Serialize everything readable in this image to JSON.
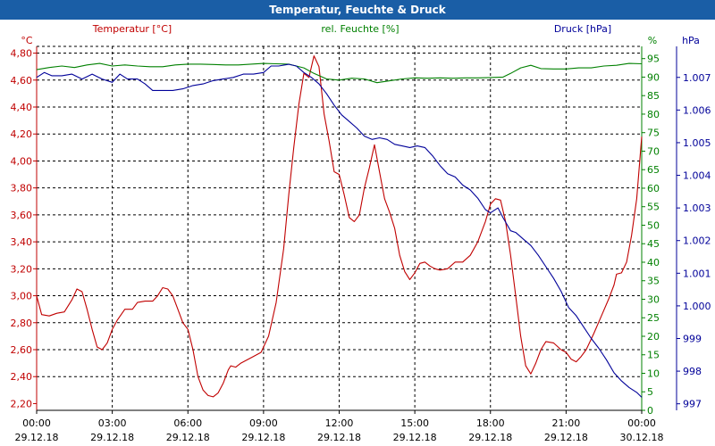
{
  "window": {
    "title": "Temperatur, Feuchte & Druck"
  },
  "chart_data": {
    "type": "line",
    "title": "Temperatur, Feuchte & Druck",
    "colors": {
      "temperature": "#c00000",
      "humidity": "#008000",
      "pressure": "#000099"
    },
    "axes": {
      "temperature": {
        "label": "Temperatur [°C]",
        "unit": "°C",
        "ylim": [
          2.15,
          4.85
        ],
        "ticks": [
          "2,20",
          "2,40",
          "2,60",
          "2,80",
          "3,00",
          "3,20",
          "3,40",
          "3,60",
          "3,80",
          "4,00",
          "4,20",
          "4,40",
          "4,60",
          "4,80"
        ]
      },
      "humidity": {
        "label": "rel. Feuchte [%]",
        "unit": "%",
        "ylim": [
          0,
          98.3
        ],
        "ticks": [
          "0",
          "5",
          "10",
          "15",
          "20",
          "25",
          "30",
          "35",
          "40",
          "45",
          "50",
          "55",
          "60",
          "65",
          "70",
          "75",
          "80",
          "85",
          "90",
          "95"
        ]
      },
      "pressure": {
        "label": "Druck [hPa]",
        "unit": "hPa",
        "ylim": [
          996.8,
          1007.95
        ],
        "ticks": [
          "997",
          "998",
          "999",
          "1.000",
          "1.001",
          "1.002",
          "1.003",
          "1.004",
          "1.005",
          "1.006",
          "1.007"
        ]
      }
    },
    "x": {
      "range_hours": [
        0,
        24
      ],
      "ticks": [
        {
          "time": "00:00",
          "date": "29.12.18"
        },
        {
          "time": "03:00",
          "date": "29.12.18"
        },
        {
          "time": "06:00",
          "date": "29.12.18"
        },
        {
          "time": "09:00",
          "date": "29.12.18"
        },
        {
          "time": "12:00",
          "date": "29.12.18"
        },
        {
          "time": "15:00",
          "date": "29.12.18"
        },
        {
          "time": "18:00",
          "date": "29.12.18"
        },
        {
          "time": "21:00",
          "date": "29.12.18"
        },
        {
          "time": "00:00",
          "date": "30.12.18"
        }
      ]
    },
    "series": [
      {
        "name": "Temperatur",
        "axis": "temperature",
        "points": [
          [
            0,
            3.0
          ],
          [
            0.2,
            2.86
          ],
          [
            0.5,
            2.85
          ],
          [
            0.8,
            2.87
          ],
          [
            1.1,
            2.88
          ],
          [
            1.4,
            2.97
          ],
          [
            1.6,
            3.05
          ],
          [
            1.8,
            3.03
          ],
          [
            2.0,
            2.9
          ],
          [
            2.2,
            2.75
          ],
          [
            2.4,
            2.62
          ],
          [
            2.6,
            2.6
          ],
          [
            2.8,
            2.65
          ],
          [
            3.0,
            2.75
          ],
          [
            3.2,
            2.82
          ],
          [
            3.5,
            2.9
          ],
          [
            3.8,
            2.9
          ],
          [
            4.0,
            2.95
          ],
          [
            4.3,
            2.96
          ],
          [
            4.6,
            2.96
          ],
          [
            4.8,
            3.0
          ],
          [
            5.0,
            3.06
          ],
          [
            5.2,
            3.05
          ],
          [
            5.4,
            3.0
          ],
          [
            5.6,
            2.9
          ],
          [
            5.8,
            2.8
          ],
          [
            6.0,
            2.75
          ],
          [
            6.2,
            2.6
          ],
          [
            6.4,
            2.4
          ],
          [
            6.6,
            2.3
          ],
          [
            6.8,
            2.26
          ],
          [
            7.0,
            2.25
          ],
          [
            7.2,
            2.28
          ],
          [
            7.4,
            2.35
          ],
          [
            7.6,
            2.45
          ],
          [
            7.7,
            2.48
          ],
          [
            7.9,
            2.47
          ],
          [
            8.1,
            2.5
          ],
          [
            8.3,
            2.52
          ],
          [
            8.6,
            2.55
          ],
          [
            8.9,
            2.58
          ],
          [
            9.2,
            2.7
          ],
          [
            9.5,
            2.95
          ],
          [
            9.8,
            3.35
          ],
          [
            10.0,
            3.75
          ],
          [
            10.2,
            4.1
          ],
          [
            10.4,
            4.42
          ],
          [
            10.6,
            4.65
          ],
          [
            10.8,
            4.62
          ],
          [
            11.0,
            4.78
          ],
          [
            11.2,
            4.7
          ],
          [
            11.4,
            4.35
          ],
          [
            11.6,
            4.15
          ],
          [
            11.8,
            3.92
          ],
          [
            12.0,
            3.9
          ],
          [
            12.2,
            3.75
          ],
          [
            12.4,
            3.58
          ],
          [
            12.6,
            3.55
          ],
          [
            12.8,
            3.6
          ],
          [
            13.0,
            3.8
          ],
          [
            13.2,
            3.95
          ],
          [
            13.4,
            4.12
          ],
          [
            13.6,
            3.92
          ],
          [
            13.8,
            3.72
          ],
          [
            14.0,
            3.62
          ],
          [
            14.2,
            3.5
          ],
          [
            14.4,
            3.3
          ],
          [
            14.6,
            3.18
          ],
          [
            14.8,
            3.12
          ],
          [
            15.0,
            3.17
          ],
          [
            15.2,
            3.24
          ],
          [
            15.4,
            3.25
          ],
          [
            15.6,
            3.22
          ],
          [
            15.8,
            3.2
          ],
          [
            16.0,
            3.19
          ],
          [
            16.3,
            3.2
          ],
          [
            16.6,
            3.25
          ],
          [
            16.9,
            3.25
          ],
          [
            17.2,
            3.3
          ],
          [
            17.5,
            3.4
          ],
          [
            17.8,
            3.55
          ],
          [
            18.0,
            3.68
          ],
          [
            18.2,
            3.72
          ],
          [
            18.4,
            3.71
          ],
          [
            18.6,
            3.55
          ],
          [
            18.8,
            3.3
          ],
          [
            19.0,
            3.0
          ],
          [
            19.2,
            2.7
          ],
          [
            19.4,
            2.48
          ],
          [
            19.6,
            2.42
          ],
          [
            19.8,
            2.5
          ],
          [
            20.0,
            2.6
          ],
          [
            20.2,
            2.66
          ],
          [
            20.5,
            2.65
          ],
          [
            20.8,
            2.6
          ],
          [
            21.0,
            2.58
          ],
          [
            21.2,
            2.53
          ],
          [
            21.4,
            2.51
          ],
          [
            21.6,
            2.55
          ],
          [
            21.8,
            2.6
          ],
          [
            22.1,
            2.72
          ],
          [
            22.4,
            2.85
          ],
          [
            22.7,
            2.98
          ],
          [
            22.9,
            3.08
          ],
          [
            23.0,
            3.16
          ],
          [
            23.2,
            3.17
          ],
          [
            23.4,
            3.25
          ],
          [
            23.6,
            3.45
          ],
          [
            23.8,
            3.72
          ],
          [
            24.0,
            4.18
          ]
        ]
      },
      {
        "name": "rel. Feuchte",
        "axis": "humidity",
        "points": [
          [
            0,
            92.0
          ],
          [
            0.5,
            92.6
          ],
          [
            1.0,
            93.0
          ],
          [
            1.5,
            92.6
          ],
          [
            2.0,
            93.3
          ],
          [
            2.5,
            93.7
          ],
          [
            3.0,
            93.0
          ],
          [
            3.5,
            93.3
          ],
          [
            4.0,
            93.0
          ],
          [
            4.5,
            92.8
          ],
          [
            5.0,
            92.8
          ],
          [
            5.5,
            93.3
          ],
          [
            6.0,
            93.5
          ],
          [
            6.5,
            93.5
          ],
          [
            7.0,
            93.4
          ],
          [
            7.5,
            93.3
          ],
          [
            8.0,
            93.3
          ],
          [
            8.5,
            93.5
          ],
          [
            9.0,
            93.7
          ],
          [
            9.5,
            93.6
          ],
          [
            10.0,
            93.5
          ],
          [
            10.3,
            93.0
          ],
          [
            10.6,
            92.5
          ],
          [
            11.0,
            91.0
          ],
          [
            11.5,
            89.5
          ],
          [
            12.0,
            89.2
          ],
          [
            12.5,
            89.7
          ],
          [
            13.0,
            89.5
          ],
          [
            13.5,
            88.5
          ],
          [
            14.0,
            89.0
          ],
          [
            14.5,
            89.5
          ],
          [
            15.0,
            89.8
          ],
          [
            15.5,
            89.7
          ],
          [
            16.0,
            89.8
          ],
          [
            16.5,
            89.7
          ],
          [
            17.0,
            89.8
          ],
          [
            17.5,
            89.8
          ],
          [
            18.0,
            89.9
          ],
          [
            18.5,
            90.0
          ],
          [
            18.8,
            91.0
          ],
          [
            19.2,
            92.5
          ],
          [
            19.6,
            93.2
          ],
          [
            20.0,
            92.3
          ],
          [
            20.5,
            92.2
          ],
          [
            21.0,
            92.2
          ],
          [
            21.5,
            92.5
          ],
          [
            22.0,
            92.5
          ],
          [
            22.5,
            93.0
          ],
          [
            23.0,
            93.2
          ],
          [
            23.5,
            93.7
          ],
          [
            24.0,
            93.6
          ]
        ]
      },
      {
        "name": "Druck",
        "axis": "pressure",
        "points": [
          [
            0,
            1007.0
          ],
          [
            0.3,
            1007.15
          ],
          [
            0.6,
            1007.05
          ],
          [
            1.0,
            1007.05
          ],
          [
            1.4,
            1007.1
          ],
          [
            1.8,
            1006.95
          ],
          [
            2.2,
            1007.1
          ],
          [
            2.6,
            1006.95
          ],
          [
            3.0,
            1006.85
          ],
          [
            3.3,
            1007.1
          ],
          [
            3.6,
            1006.95
          ],
          [
            4.0,
            1006.95
          ],
          [
            4.3,
            1006.8
          ],
          [
            4.6,
            1006.6
          ],
          [
            5.0,
            1006.6
          ],
          [
            5.4,
            1006.6
          ],
          [
            5.8,
            1006.65
          ],
          [
            6.2,
            1006.75
          ],
          [
            6.6,
            1006.8
          ],
          [
            7.0,
            1006.9
          ],
          [
            7.4,
            1006.95
          ],
          [
            7.8,
            1007.0
          ],
          [
            8.2,
            1007.1
          ],
          [
            8.6,
            1007.1
          ],
          [
            9.0,
            1007.15
          ],
          [
            9.3,
            1007.35
          ],
          [
            9.6,
            1007.35
          ],
          [
            10.0,
            1007.4
          ],
          [
            10.3,
            1007.35
          ],
          [
            10.6,
            1007.15
          ],
          [
            10.9,
            1007.0
          ],
          [
            11.2,
            1006.8
          ],
          [
            11.5,
            1006.5
          ],
          [
            11.8,
            1006.15
          ],
          [
            12.1,
            1005.85
          ],
          [
            12.4,
            1005.65
          ],
          [
            12.7,
            1005.45
          ],
          [
            13.0,
            1005.2
          ],
          [
            13.3,
            1005.1
          ],
          [
            13.6,
            1005.15
          ],
          [
            13.9,
            1005.1
          ],
          [
            14.2,
            1004.95
          ],
          [
            14.5,
            1004.9
          ],
          [
            14.8,
            1004.85
          ],
          [
            15.1,
            1004.9
          ],
          [
            15.4,
            1004.85
          ],
          [
            15.7,
            1004.6
          ],
          [
            16.0,
            1004.3
          ],
          [
            16.3,
            1004.05
          ],
          [
            16.6,
            1003.95
          ],
          [
            16.9,
            1003.7
          ],
          [
            17.2,
            1003.55
          ],
          [
            17.5,
            1003.3
          ],
          [
            17.8,
            1002.95
          ],
          [
            18.0,
            1002.85
          ],
          [
            18.3,
            1003.0
          ],
          [
            18.5,
            1002.7
          ],
          [
            18.8,
            1002.3
          ],
          [
            19.0,
            1002.25
          ],
          [
            19.3,
            1002.05
          ],
          [
            19.6,
            1001.85
          ],
          [
            19.9,
            1001.55
          ],
          [
            20.2,
            1001.2
          ],
          [
            20.5,
            1000.85
          ],
          [
            20.8,
            1000.45
          ],
          [
            21.1,
            999.95
          ],
          [
            21.4,
            999.7
          ],
          [
            21.7,
            999.35
          ],
          [
            22.0,
            999.0
          ],
          [
            22.3,
            998.7
          ],
          [
            22.6,
            998.35
          ],
          [
            22.9,
            997.95
          ],
          [
            23.2,
            997.7
          ],
          [
            23.5,
            997.5
          ],
          [
            23.8,
            997.35
          ],
          [
            24.0,
            997.2
          ]
        ]
      }
    ]
  }
}
